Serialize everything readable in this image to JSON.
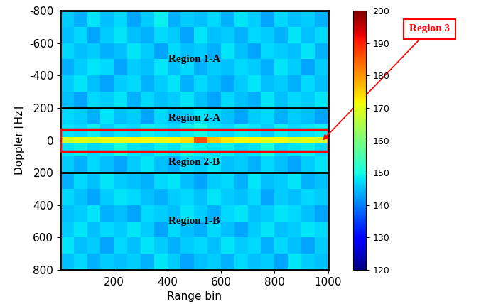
{
  "chart_data": {
    "type": "heatmap",
    "x_label": "Range bin",
    "y_label": "Doppler [Hz]",
    "xlim": [
      0,
      1000
    ],
    "xticks": [
      200,
      400,
      600,
      800,
      1000
    ],
    "ylim": [
      800,
      -800
    ],
    "yticks": [
      -800,
      -600,
      -400,
      -200,
      0,
      200,
      400,
      600,
      800
    ],
    "color": "jet",
    "colorbar_range": [
      120,
      200
    ],
    "colorbar_ticks": [
      120,
      130,
      140,
      150,
      160,
      170,
      180,
      190,
      200
    ],
    "x_edges": [
      0,
      50,
      100,
      150,
      200,
      250,
      300,
      350,
      400,
      450,
      500,
      550,
      600,
      650,
      700,
      750,
      800,
      850,
      900,
      950,
      1000
    ],
    "y_edges": [
      -800,
      -700,
      -600,
      -500,
      -400,
      -300,
      -200,
      -100,
      -20,
      20,
      100,
      200,
      300,
      400,
      500,
      600,
      700,
      800
    ],
    "cells": [
      [
        146,
        144,
        148,
        145,
        147,
        143,
        146,
        149,
        144,
        146,
        145,
        147,
        144,
        148,
        146,
        143,
        147,
        145,
        146,
        144
      ],
      [
        145,
        147,
        143,
        146,
        148,
        145,
        144,
        147,
        146,
        143,
        148,
        145,
        146,
        144,
        147,
        146,
        144,
        148,
        145,
        147
      ],
      [
        147,
        145,
        146,
        144,
        145,
        148,
        146,
        143,
        147,
        145,
        146,
        144,
        148,
        145,
        143,
        147,
        146,
        145,
        148,
        144
      ],
      [
        144,
        146,
        148,
        147,
        143,
        146,
        145,
        148,
        145,
        147,
        144,
        146,
        145,
        147,
        146,
        144,
        148,
        146,
        143,
        146
      ],
      [
        146,
        148,
        145,
        143,
        146,
        147,
        144,
        146,
        148,
        144,
        147,
        145,
        143,
        146,
        148,
        145,
        146,
        144,
        147,
        145
      ],
      [
        145,
        143,
        147,
        146,
        148,
        144,
        147,
        145,
        146,
        148,
        145,
        143,
        147,
        145,
        144,
        148,
        145,
        147,
        146,
        148
      ],
      [
        147,
        146,
        144,
        148,
        145,
        146,
        143,
        147,
        145,
        146,
        148,
        147,
        145,
        143,
        146,
        147,
        144,
        146,
        145,
        143
      ],
      [
        148,
        147,
        149,
        146,
        148,
        147,
        149,
        148,
        147,
        149,
        150,
        148,
        147,
        149,
        148,
        146,
        149,
        147,
        148,
        149
      ],
      [
        168,
        170,
        169,
        171,
        170,
        172,
        171,
        170,
        172,
        174,
        186,
        176,
        173,
        171,
        172,
        170,
        171,
        169,
        170,
        168
      ],
      [
        148,
        149,
        147,
        148,
        150,
        148,
        147,
        149,
        148,
        150,
        149,
        148,
        149,
        147,
        148,
        150,
        147,
        148,
        149,
        147
      ],
      [
        146,
        144,
        147,
        145,
        143,
        146,
        148,
        145,
        144,
        147,
        146,
        148,
        145,
        146,
        144,
        147,
        145,
        143,
        146,
        148
      ],
      [
        144,
        147,
        145,
        148,
        146,
        145,
        144,
        147,
        148,
        145,
        143,
        146,
        147,
        144,
        148,
        145,
        146,
        148,
        144,
        145
      ],
      [
        147,
        145,
        143,
        146,
        148,
        147,
        145,
        144,
        146,
        147,
        145,
        148,
        146,
        145,
        147,
        143,
        146,
        145,
        147,
        146
      ],
      [
        145,
        146,
        148,
        144,
        145,
        143,
        147,
        146,
        145,
        148,
        146,
        144,
        147,
        148,
        145,
        146,
        148,
        147,
        145,
        143
      ],
      [
        146,
        148,
        145,
        147,
        146,
        148,
        146,
        143,
        147,
        145,
        144,
        147,
        145,
        143,
        146,
        148,
        145,
        146,
        148,
        147
      ],
      [
        148,
        145,
        146,
        143,
        147,
        145,
        148,
        146,
        144,
        146,
        147,
        145,
        148,
        146,
        147,
        144,
        147,
        145,
        143,
        146
      ],
      [
        145,
        147,
        144,
        146,
        145,
        146,
        144,
        148,
        146,
        143,
        145,
        146,
        144,
        147,
        145,
        146,
        143,
        148,
        146,
        145
      ]
    ],
    "regions": [
      {
        "name": "Region 1-A",
        "doppler": [
          -800,
          -200
        ]
      },
      {
        "name": "Region 2-A",
        "doppler": [
          -200,
          -70
        ]
      },
      {
        "name": "Region 2-B",
        "doppler": [
          70,
          200
        ]
      },
      {
        "name": "Region 1-B",
        "doppler": [
          200,
          800
        ]
      }
    ],
    "region_3": {
      "name": "Region 3",
      "doppler": [
        -70,
        70
      ]
    }
  }
}
